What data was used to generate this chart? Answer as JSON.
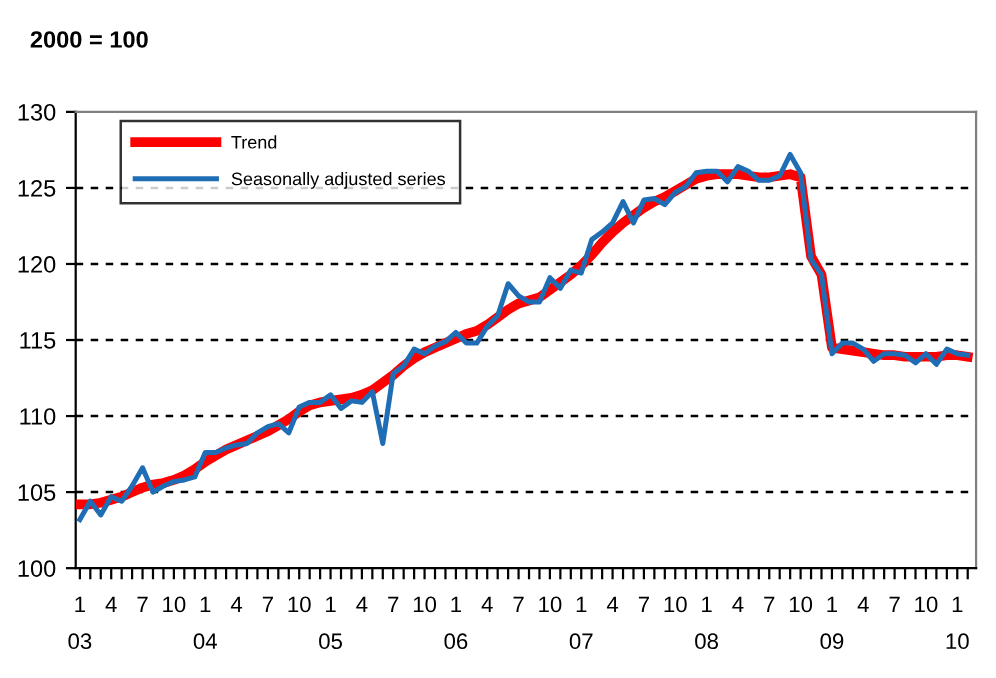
{
  "chart_data": {
    "type": "line",
    "title": "2000 = 100",
    "categories": [
      "1\n03",
      null,
      null,
      "4",
      null,
      null,
      "7",
      null,
      null,
      "10",
      null,
      null,
      "1\n04",
      null,
      null,
      "4",
      null,
      null,
      "7",
      null,
      null,
      "10",
      null,
      null,
      "1\n05",
      null,
      null,
      "4",
      null,
      null,
      "7",
      null,
      null,
      "10",
      null,
      null,
      "1\n06",
      null,
      null,
      "4",
      null,
      null,
      "7",
      null,
      null,
      "10",
      null,
      null,
      "1\n07",
      null,
      null,
      "4",
      null,
      null,
      "7",
      null,
      null,
      "10",
      null,
      null,
      "1\n08",
      null,
      null,
      "4",
      null,
      null,
      "7",
      null,
      null,
      "10",
      null,
      null,
      "1\n09",
      null,
      null,
      "4",
      null,
      null,
      "7",
      null,
      null,
      "10",
      null,
      null,
      "1\n10",
      null
    ],
    "series": [
      {
        "name": "Trend",
        "color": "#ff0000",
        "values": [
          104.2,
          104.2,
          104.3,
          104.5,
          104.7,
          105.0,
          105.3,
          105.5,
          105.6,
          105.8,
          106.1,
          106.5,
          107.0,
          107.4,
          107.8,
          108.1,
          108.4,
          108.7,
          109.0,
          109.4,
          109.8,
          110.3,
          110.7,
          110.9,
          111.0,
          111.1,
          111.2,
          111.4,
          111.7,
          112.2,
          112.7,
          113.3,
          113.8,
          114.2,
          114.5,
          114.8,
          115.1,
          115.4,
          115.6,
          116.0,
          116.5,
          117.0,
          117.4,
          117.6,
          117.8,
          118.3,
          118.8,
          119.3,
          119.9,
          120.6,
          121.4,
          122.1,
          122.7,
          123.2,
          123.7,
          124.1,
          124.4,
          124.8,
          125.2,
          125.6,
          125.8,
          125.9,
          125.9,
          125.9,
          125.8,
          125.7,
          125.7,
          125.8,
          125.9,
          125.7,
          120.5,
          119.3,
          114.5,
          114.4,
          114.3,
          114.2,
          114.1,
          114.0,
          114.0,
          113.9,
          113.9,
          113.9,
          113.9,
          114.0,
          114.0,
          113.9
        ]
      },
      {
        "name": "Seasonally adjusted series",
        "color": "#1f6eb5",
        "values": [
          103.2,
          104.4,
          103.5,
          104.7,
          104.4,
          105.4,
          106.6,
          105.0,
          105.4,
          105.7,
          105.8,
          106.0,
          107.6,
          107.6,
          107.9,
          108.1,
          108.2,
          108.9,
          109.3,
          109.5,
          108.9,
          110.6,
          110.9,
          110.9,
          111.4,
          110.5,
          111.0,
          110.9,
          111.6,
          108.2,
          112.8,
          113.3,
          114.4,
          114.1,
          114.6,
          114.9,
          115.5,
          114.8,
          114.8,
          115.9,
          116.6,
          118.7,
          117.9,
          117.5,
          117.5,
          119.1,
          118.4,
          119.6,
          119.4,
          121.6,
          122.1,
          122.7,
          124.1,
          122.7,
          124.2,
          124.3,
          123.9,
          124.7,
          125.1,
          126.0,
          126.1,
          126.1,
          125.4,
          126.4,
          126.1,
          125.5,
          125.5,
          125.8,
          127.2,
          126.0,
          120.3,
          119.3,
          114.1,
          114.8,
          114.8,
          114.4,
          113.6,
          114.1,
          114.1,
          114.0,
          113.5,
          114.1,
          113.4,
          114.4,
          114.1,
          114.0
        ]
      }
    ],
    "ylim": [
      100,
      130
    ],
    "yticks": [
      100,
      105,
      110,
      115,
      120,
      125,
      130
    ],
    "grid": "y",
    "legend": "top left",
    "line_style": "solid",
    "marker": "none"
  }
}
